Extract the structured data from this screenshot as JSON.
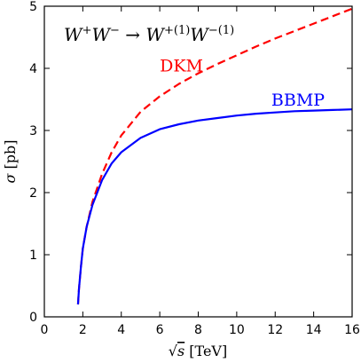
{
  "chart_data": {
    "type": "line",
    "title": {
      "p1": "W",
      "s1": "+",
      "p2": "W",
      "s2": "−",
      "arrow": " → ",
      "p3": "W",
      "s3": "+(1)",
      "p4": "W",
      "s4": "−(1)"
    },
    "xlabel": {
      "root": "√",
      "var": "s",
      "unit": " [TeV]"
    },
    "ylabel": {
      "var": "σ",
      "unit": " [pb]"
    },
    "xlim": [
      0,
      16
    ],
    "ylim": [
      0,
      5
    ],
    "xticks": [
      0,
      2,
      4,
      6,
      8,
      10,
      12,
      14,
      16
    ],
    "yticks": [
      0,
      1,
      2,
      3,
      4,
      5
    ],
    "grid": false,
    "series": [
      {
        "name": "DKM",
        "color": "#ff0000",
        "style": "dashed",
        "x": [
          1.75,
          1.8,
          1.9,
          2.0,
          2.2,
          2.5,
          3.0,
          3.5,
          4.0,
          5.0,
          6.0,
          7.0,
          8.0,
          9.0,
          10.0,
          11.0,
          12.0,
          13.0,
          14.0,
          15.0,
          16.0
        ],
        "y": [
          0.2,
          0.45,
          0.8,
          1.1,
          1.45,
          1.85,
          2.3,
          2.65,
          2.92,
          3.3,
          3.55,
          3.75,
          3.92,
          4.07,
          4.21,
          4.35,
          4.48,
          4.6,
          4.72,
          4.84,
          4.96
        ]
      },
      {
        "name": "BBMP",
        "color": "#0000ff",
        "style": "solid",
        "x": [
          1.75,
          1.8,
          1.9,
          2.0,
          2.2,
          2.5,
          3.0,
          3.5,
          4.0,
          5.0,
          6.0,
          7.0,
          8.0,
          9.0,
          10.0,
          11.0,
          12.0,
          13.0,
          14.0,
          15.0,
          16.0
        ],
        "y": [
          0.2,
          0.45,
          0.8,
          1.1,
          1.45,
          1.8,
          2.2,
          2.47,
          2.65,
          2.88,
          3.02,
          3.1,
          3.16,
          3.2,
          3.24,
          3.27,
          3.29,
          3.31,
          3.32,
          3.33,
          3.34
        ]
      }
    ],
    "annotations": [
      {
        "text": "DKM",
        "color": "#ff0000",
        "x": 6.0,
        "y": 3.95
      },
      {
        "text": "BBMP",
        "color": "#0000ff",
        "x": 11.8,
        "y": 3.4
      }
    ]
  }
}
